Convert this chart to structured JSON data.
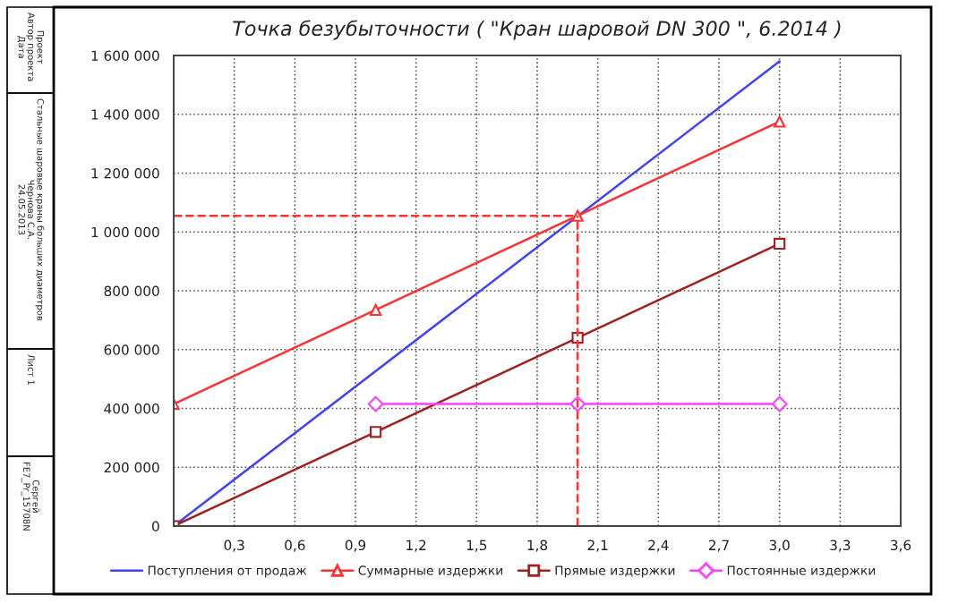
{
  "chart_data": {
    "type": "line",
    "title": "Точка безубыточности ( \"Кран шаровой DN 300 \", 6.2014 )",
    "series": [
      {
        "name": "Поступления от продаж",
        "color": "#4040ff",
        "x": [
          0,
          3.0
        ],
        "values": [
          0,
          1580000
        ],
        "marker": "none"
      },
      {
        "name": "Суммарные издержки",
        "color": "#ff3030",
        "x": [
          0,
          1.0,
          2.0,
          3.0
        ],
        "values": [
          415000,
          735000,
          1055000,
          1375000
        ],
        "marker": "triangle"
      },
      {
        "name": "Прямые издержки",
        "color": "#a02020",
        "x": [
          0,
          1.0,
          2.0,
          3.0
        ],
        "values": [
          0,
          320000,
          640000,
          960000
        ],
        "marker": "square"
      },
      {
        "name": "Постоянные издержки",
        "color": "#ff40ff",
        "x": [
          1.0,
          2.0,
          3.0
        ],
        "values": [
          415000,
          415000,
          415000
        ],
        "marker": "diamond"
      }
    ],
    "ref_lines": [
      {
        "axis": "x",
        "value": 2.0,
        "color": "#ff3030",
        "line_style": "dashed"
      },
      {
        "axis": "y",
        "value": 1055000,
        "color": "#ff3030",
        "line_style": "dashed"
      }
    ],
    "xlim": [
      0,
      3.6
    ],
    "xticks": [
      {
        "value": 0.3,
        "label": "0,3"
      },
      {
        "value": 0.6,
        "label": "0,6"
      },
      {
        "value": 0.9,
        "label": "0,9"
      },
      {
        "value": 1.2,
        "label": "1,2"
      },
      {
        "value": 1.5,
        "label": "1,5"
      },
      {
        "value": 1.8,
        "label": "1,8"
      },
      {
        "value": 2.1,
        "label": "2,1"
      },
      {
        "value": 2.4,
        "label": "2,4"
      },
      {
        "value": 2.7,
        "label": "2,7"
      },
      {
        "value": 3.0,
        "label": "3,0"
      },
      {
        "value": 3.3,
        "label": "3,3"
      },
      {
        "value": 3.6,
        "label": "3,6"
      }
    ],
    "ylim": [
      0,
      1600000
    ],
    "yticks": [
      {
        "value": 0,
        "label": "0"
      },
      {
        "value": 200000,
        "label": "200 000"
      },
      {
        "value": 400000,
        "label": "400 000"
      },
      {
        "value": 600000,
        "label": "600 000"
      },
      {
        "value": 800000,
        "label": "800 000"
      },
      {
        "value": 1000000,
        "label": "1 000 000"
      },
      {
        "value": 1200000,
        "label": "1 200 000"
      },
      {
        "value": 1400000,
        "label": "1 400 000"
      },
      {
        "value": 1600000,
        "label": "1 600 000"
      }
    ],
    "annotations": [
      "Проект\nАвтор проекта\nДата",
      "Стальные шаровые краны больших диаметров\nЧернова С.А.\n24.05.2013",
      "Лист 1",
      "Сергей\nFE7_Pr_15708N"
    ],
    "grid": true,
    "legend": "bottom",
    "line_style": "solid"
  }
}
